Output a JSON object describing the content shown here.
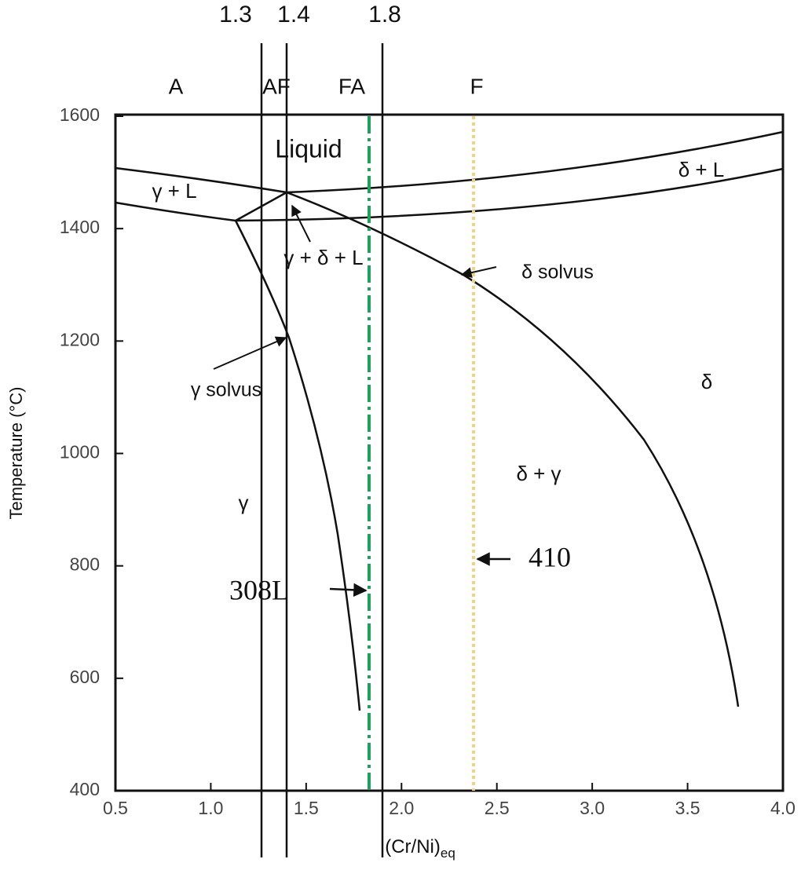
{
  "chart_data": {
    "type": "phase-diagram",
    "xlabel": "(Cr/Ni)",
    "xlabel_sub": "eq",
    "ylabel": "Temperature (°C)",
    "xlim": [
      0.5,
      4.0
    ],
    "xticks": [
      0.5,
      {
        "value": 1.0,
        "label": "1.0"
      },
      1.5,
      {
        "value": 2.0,
        "label": "2.0"
      },
      2.5,
      {
        "value": 3.0,
        "label": "3.0"
      },
      3.5,
      {
        "value": 4.0,
        "label": "4.0"
      }
    ],
    "ylim": [
      400,
      1600
    ],
    "yticks": [
      400,
      600,
      800,
      1000,
      1200,
      1400,
      1600
    ]
  },
  "annotations": {
    "boundaries": [
      "1.3",
      "1.4",
      "1.8"
    ],
    "modes": [
      "A",
      "AF",
      "FA",
      "F"
    ],
    "regions": [
      "Liquid",
      "γ + L",
      "δ + L",
      "γ + δ + L",
      "δ solvus",
      "γ solvus",
      "δ",
      "δ + γ",
      "γ"
    ],
    "alloys": [
      "308L",
      "410"
    ]
  }
}
